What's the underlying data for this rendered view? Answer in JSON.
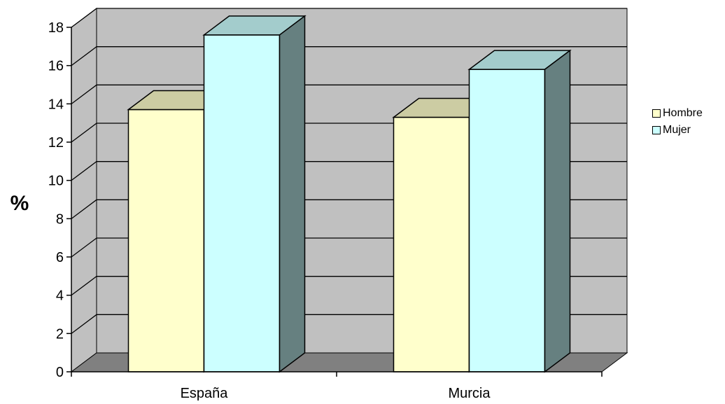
{
  "chart_data": {
    "type": "bar",
    "title": "",
    "xlabel": "",
    "ylabel": "%",
    "categories": [
      "España",
      "Murcia"
    ],
    "series": [
      {
        "name": "Hombre",
        "values": [
          13.7,
          13.3
        ],
        "color": "#FFFFCC"
      },
      {
        "name": "Mujer",
        "values": [
          17.6,
          15.8
        ],
        "color": "#CCFFFF"
      }
    ],
    "ylim": [
      0,
      18
    ],
    "yticks": [
      0,
      2,
      4,
      6,
      8,
      10,
      12,
      14,
      16,
      18
    ],
    "grid": true,
    "three_d": true,
    "legend_position": "right",
    "colors": {
      "wall": "#C0C0C0",
      "floor": "#808080",
      "gridline": "#000000",
      "Hombre_side": "#808066",
      "Hombre_top": "#CCCCA3",
      "Mujer_side": "#668080",
      "Mujer_top": "#A3CCCC"
    }
  }
}
